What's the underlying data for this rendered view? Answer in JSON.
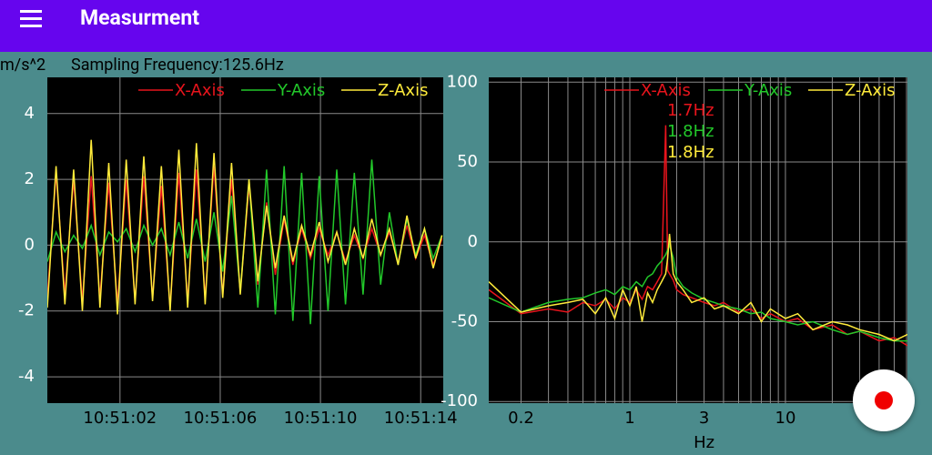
{
  "header": {
    "title": "Measurment"
  },
  "info": {
    "unit": "m/s^2",
    "sampling": "Sampling Frequency:125.6Hz"
  },
  "chart_data": [
    {
      "type": "line",
      "xlim": [
        -0.9,
        14.9
      ],
      "ylim": [
        -4.8,
        5.1
      ],
      "xticks": [
        {
          "value": 2,
          "label": "10:51:02"
        },
        {
          "value": 6,
          "label": "10:51:06"
        },
        {
          "value": 10,
          "label": "10:51:10"
        },
        {
          "value": 14,
          "label": "10:51:14"
        }
      ],
      "yticks": [
        -4,
        -2,
        0,
        2,
        4
      ],
      "grid": true,
      "x": [
        -0.9,
        -0.55,
        -0.2,
        0.15,
        0.5,
        0.85,
        1.2,
        1.55,
        1.9,
        2.25,
        2.6,
        2.95,
        3.3,
        3.65,
        4.0,
        4.35,
        4.7,
        5.05,
        5.4,
        5.75,
        6.1,
        6.45,
        6.8,
        7.15,
        7.5,
        7.85,
        8.2,
        8.55,
        8.9,
        9.25,
        9.6,
        9.95,
        10.3,
        10.65,
        11.0,
        11.35,
        11.7,
        12.05,
        12.4,
        12.75,
        13.1,
        13.45,
        13.8,
        14.15,
        14.5,
        14.85
      ],
      "series": [
        {
          "name": "X-Axis",
          "color": "#e8141c",
          "values": [
            -1.6,
            2.2,
            -1.5,
            2.0,
            -1.7,
            2.1,
            -1.6,
            1.9,
            -1.8,
            2.0,
            -1.7,
            2.1,
            -1.6,
            1.8,
            -1.9,
            2.2,
            -1.7,
            2.3,
            -1.6,
            2.4,
            -1.5,
            2.0,
            -1.4,
            1.8,
            -1.2,
            1.3,
            -0.9,
            0.8,
            -0.6,
            0.5,
            -0.4,
            0.5,
            -0.3,
            0.4,
            -0.5,
            0.3,
            -0.4,
            0.5,
            -0.3,
            0.4,
            -0.5,
            0.6,
            -0.4,
            0.3,
            -0.6,
            0.2
          ]
        },
        {
          "name": "Y-Axis",
          "color": "#22c82a",
          "values": [
            -0.5,
            0.4,
            -0.2,
            0.3,
            -0.1,
            0.6,
            -0.3,
            0.4,
            0.1,
            0.5,
            -0.2,
            0.6,
            0.0,
            0.5,
            -0.3,
            0.7,
            -0.4,
            0.8,
            -0.5,
            1.0,
            -0.8,
            1.5,
            -1.4,
            2.0,
            -1.9,
            2.3,
            -2.1,
            2.4,
            -2.3,
            2.2,
            -2.4,
            2.1,
            -2.0,
            2.3,
            -1.8,
            2.2,
            -1.5,
            2.6,
            -1.2,
            1.0,
            -0.6,
            0.8,
            -0.3,
            0.5,
            -0.4,
            0.3
          ]
        },
        {
          "name": "Z-Axis",
          "color": "#ffeb3b",
          "values": [
            -1.9,
            2.4,
            -1.8,
            2.3,
            -2.0,
            3.2,
            -1.9,
            2.5,
            -2.1,
            2.6,
            -1.8,
            2.7,
            -1.7,
            2.4,
            -2.0,
            2.9,
            -1.9,
            3.1,
            -1.8,
            2.8,
            -1.6,
            2.5,
            -1.5,
            2.0,
            -1.1,
            1.2,
            -0.7,
            0.9,
            -0.5,
            0.6,
            -0.3,
            0.7,
            -0.5,
            0.4,
            -0.6,
            0.5,
            -0.4,
            0.8,
            -0.3,
            0.5,
            -0.6,
            0.9,
            -0.4,
            0.5,
            -0.7,
            0.3
          ]
        }
      ]
    },
    {
      "type": "line",
      "xlog": true,
      "xlabel": "Hz",
      "xlim": [
        0.124,
        60.8
      ],
      "ylim": [
        -101,
        103
      ],
      "xticks": [
        0.2,
        1,
        3,
        10
      ],
      "yticks": [
        -100,
        -50,
        0,
        50,
        100
      ],
      "grid": true,
      "xgrid": [
        0.2,
        0.3,
        0.4,
        0.5,
        0.6,
        0.7,
        0.8,
        0.9,
        1,
        2,
        3,
        4,
        5,
        6,
        7,
        8,
        9,
        10,
        20,
        30,
        40,
        50,
        60
      ],
      "x": [
        0.124,
        0.2,
        0.3,
        0.4,
        0.5,
        0.6,
        0.7,
        0.8,
        0.9,
        1.0,
        1.1,
        1.2,
        1.3,
        1.4,
        1.5,
        1.6,
        1.7,
        1.75,
        1.8,
        1.9,
        2.0,
        2.2,
        2.5,
        3,
        3.5,
        4,
        5,
        6,
        7,
        8,
        10,
        12,
        15,
        20,
        25,
        30,
        40,
        50,
        60.8
      ],
      "series": [
        {
          "name": "X-Axis",
          "color": "#e8141c",
          "values": [
            -30,
            -45,
            -42,
            -44,
            -38,
            -40,
            -36,
            -42,
            -35,
            -38,
            -30,
            -36,
            -28,
            -30,
            -25,
            -20,
            73,
            -18,
            -20,
            -24,
            -30,
            -33,
            -35,
            -38,
            -40,
            -38,
            -44,
            -42,
            -48,
            -45,
            -50,
            -48,
            -55,
            -52,
            -58,
            -56,
            -62,
            -60,
            -65
          ]
        },
        {
          "name": "Y-Axis",
          "color": "#22c82a",
          "values": [
            -35,
            -44,
            -38,
            -36,
            -35,
            -32,
            -30,
            -33,
            -28,
            -30,
            -25,
            -28,
            -22,
            -20,
            -15,
            -12,
            -8,
            -5,
            -2,
            -10,
            -22,
            -28,
            -32,
            -36,
            -38,
            -40,
            -42,
            -45,
            -44,
            -48,
            -50,
            -52,
            -50,
            -55,
            -58,
            -56,
            -60,
            -62,
            -62
          ]
        },
        {
          "name": "Z-Axis",
          "color": "#ffeb3b",
          "values": [
            -25,
            -44,
            -40,
            -38,
            -36,
            -45,
            -35,
            -48,
            -30,
            -40,
            -28,
            -50,
            -32,
            -38,
            -30,
            -25,
            -20,
            -10,
            5,
            -20,
            -25,
            -30,
            -38,
            -35,
            -42,
            -40,
            -45,
            -38,
            -50,
            -42,
            -48,
            -45,
            -55,
            -50,
            -52,
            -55,
            -58,
            -62,
            -58
          ]
        }
      ],
      "annotations": [
        {
          "text": "1.7Hz",
          "color": "#e8141c"
        },
        {
          "text": "1.8Hz",
          "color": "#22c82a"
        },
        {
          "text": "1.8Hz",
          "color": "#ffeb3b"
        }
      ]
    }
  ]
}
